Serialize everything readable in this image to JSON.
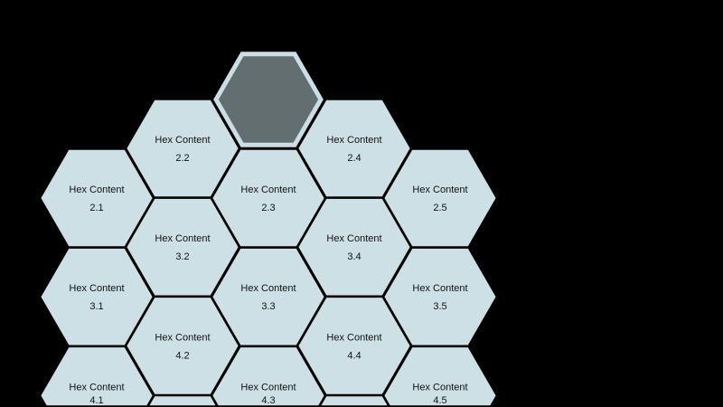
{
  "colors": {
    "background": "#000000",
    "hex_fill": "#cde0e6",
    "hex_border": "#000000",
    "selected_fill": "#626e6f",
    "selected_border": "#c9dfe5"
  },
  "selected_hex": {
    "col": 3,
    "row": 1
  },
  "hexes": [
    {
      "col": 2,
      "row": 2,
      "title": "Hex Content",
      "label": "2.2"
    },
    {
      "col": 4,
      "row": 2,
      "title": "Hex Content",
      "label": "2.4"
    },
    {
      "col": 1,
      "row": 2,
      "title": "Hex Content",
      "label": "2.1"
    },
    {
      "col": 3,
      "row": 2,
      "title": "Hex Content",
      "label": "2.3"
    },
    {
      "col": 5,
      "row": 2,
      "title": "Hex Content",
      "label": "2.5"
    },
    {
      "col": 2,
      "row": 3,
      "title": "Hex Content",
      "label": "3.2"
    },
    {
      "col": 4,
      "row": 3,
      "title": "Hex Content",
      "label": "3.4"
    },
    {
      "col": 1,
      "row": 3,
      "title": "Hex Content",
      "label": "3.1"
    },
    {
      "col": 3,
      "row": 3,
      "title": "Hex Content",
      "label": "3.3"
    },
    {
      "col": 5,
      "row": 3,
      "title": "Hex Content",
      "label": "3.5"
    },
    {
      "col": 2,
      "row": 4,
      "title": "Hex Content",
      "label": "4.2"
    },
    {
      "col": 4,
      "row": 4,
      "title": "Hex Content",
      "label": "4.4"
    },
    {
      "col": 1,
      "row": 4,
      "title": "Hex Content",
      "label": "4.1"
    },
    {
      "col": 3,
      "row": 4,
      "title": "Hex Content",
      "label": "4.3"
    },
    {
      "col": 5,
      "row": 4,
      "title": "Hex Content",
      "label": "4.5"
    },
    {
      "col": 2,
      "row": 5,
      "title": "",
      "label": ""
    },
    {
      "col": 4,
      "row": 5,
      "title": "",
      "label": ""
    }
  ]
}
